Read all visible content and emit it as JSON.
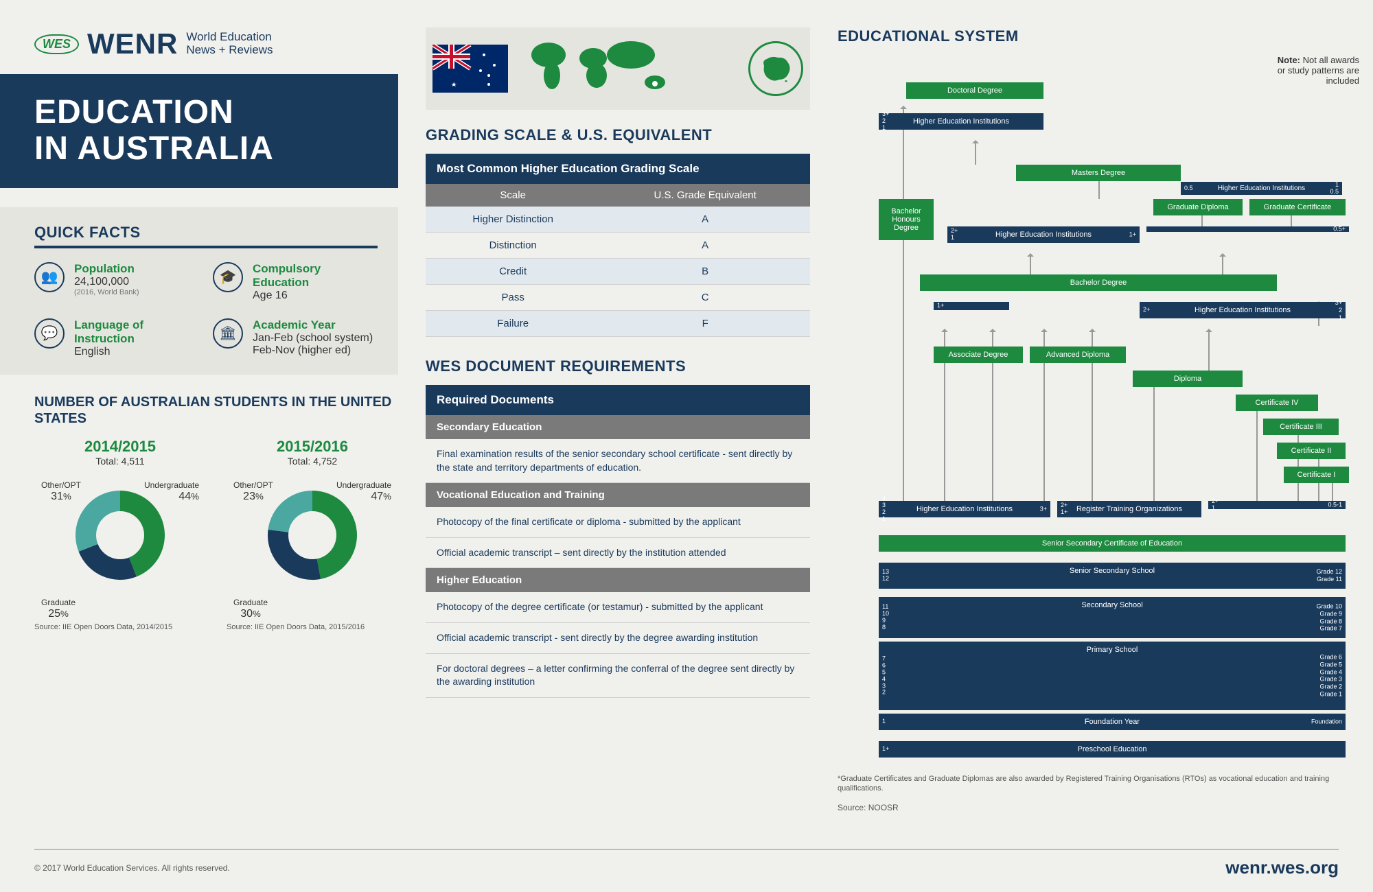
{
  "header": {
    "badge": "WES",
    "brand": "WENR",
    "subtitle1": "World Education",
    "subtitle2": "News + Reviews"
  },
  "title": {
    "line1": "EDUCATION",
    "line2": "IN AUSTRALIA"
  },
  "quickfacts": {
    "heading": "QUICK FACTS",
    "items": [
      {
        "label": "Population",
        "value": "24,100,000",
        "note": "(2016, World Bank)"
      },
      {
        "label": "Compulsory Education",
        "value": "Age 16",
        "note": ""
      },
      {
        "label": "Language of Instruction",
        "value": "English",
        "note": ""
      },
      {
        "label": "Academic Year",
        "value": "Jan-Feb (school system)\nFeb-Nov (higher ed)",
        "note": ""
      }
    ]
  },
  "students": {
    "heading": "NUMBER OF AUSTRALIAN STUDENTS IN THE UNITED STATES",
    "colors": {
      "undergrad": "#1d8a3f",
      "graduate": "#1a3a5c",
      "other": "#4aa8a0"
    },
    "charts": [
      {
        "year": "2014/2015",
        "total": "Total: 4,511",
        "segments": [
          {
            "label": "Undergraduate",
            "pct": 44,
            "color": "#1d8a3f"
          },
          {
            "label": "Graduate",
            "pct": 25,
            "color": "#1a3a5c"
          },
          {
            "label": "Other/OPT",
            "pct": 31,
            "color": "#4aa8a0"
          }
        ],
        "source": "Source: IIE Open Doors Data, 2014/2015"
      },
      {
        "year": "2015/2016",
        "total": "Total: 4,752",
        "segments": [
          {
            "label": "Undergraduate",
            "pct": 47,
            "color": "#1d8a3f"
          },
          {
            "label": "Graduate",
            "pct": 30,
            "color": "#1a3a5c"
          },
          {
            "label": "Other/OPT",
            "pct": 23,
            "color": "#4aa8a0"
          }
        ],
        "source": "Source: IIE Open Doors Data, 2015/2016"
      }
    ]
  },
  "grading": {
    "heading": "GRADING SCALE & U.S. EQUIVALENT",
    "caption": "Most Common Higher Education Grading Scale",
    "col1": "Scale",
    "col2": "U.S. Grade Equivalent",
    "rows": [
      {
        "scale": "Higher Distinction",
        "us": "A"
      },
      {
        "scale": "Distinction",
        "us": "A"
      },
      {
        "scale": "Credit",
        "us": "B"
      },
      {
        "scale": "Pass",
        "us": "C"
      },
      {
        "scale": "Failure",
        "us": "F"
      }
    ]
  },
  "docs": {
    "heading": "WES DOCUMENT REQUIREMENTS",
    "caption": "Required Documents",
    "groups": [
      {
        "title": "Secondary Education",
        "items": [
          "Final examination results of the senior secondary school certificate - sent directly by the state and territory departments of education."
        ]
      },
      {
        "title": "Vocational Education and Training",
        "items": [
          "Photocopy of the final certificate or diploma - submitted by the applicant",
          "Official academic transcript – sent directly by the institution attended"
        ]
      },
      {
        "title": "Higher Education",
        "items": [
          "Photocopy of the degree certificate (or testamur) -  submitted by the applicant",
          "Official academic transcript  - sent directly by the degree awarding institution",
          "For doctoral degrees – a letter confirming the conferral of the degree sent directly by the awarding institution"
        ]
      }
    ]
  },
  "edusystem": {
    "heading": "EDUCATIONAL SYSTEM",
    "note_label": "Note:",
    "note": "Not all awards or study patterns are included",
    "footnote": "*Graduate Certificates and Graduate Diplomas are also awarded by Registered Training Organisations (RTOs) as vocational education and training qualifications.",
    "source": "Source: NOOSR",
    "green_color": "#1d8a3f",
    "navy_color": "#1a3a5c",
    "labels": {
      "doctoral": "Doctoral Degree",
      "hei1": "Higher Education Institutions",
      "masters": "Masters Degree",
      "bach_hon": "Bachelor Honours Degree",
      "grad_dip": "Graduate Diploma",
      "grad_cert": "Graduate Certificate",
      "hei2": "Higher Education Institutions",
      "hei2b": "Higher Education Institutions",
      "bachelor": "Bachelor Degree",
      "hei3": "Higher Education Institutions",
      "assoc": "Associate Degree",
      "adv_dip": "Advanced Diploma",
      "diploma": "Diploma",
      "cert4": "Certificate IV",
      "cert3": "Certificate III",
      "cert2": "Certificate II",
      "cert1": "Certificate I",
      "hei4": "Higher Education Institutions",
      "rto": "Register Training Organizations",
      "senior_cert": "Senior Secondary Certificate of Education",
      "senior_sec": "Senior Secondary School",
      "secondary": "Secondary School",
      "primary": "Primary School",
      "foundation": "Foundation Year",
      "preschool": "Preschool Education"
    }
  },
  "footer": {
    "copyright": "© 2017 World Education Services. All rights reserved.",
    "url": "wenr.wes.org"
  }
}
